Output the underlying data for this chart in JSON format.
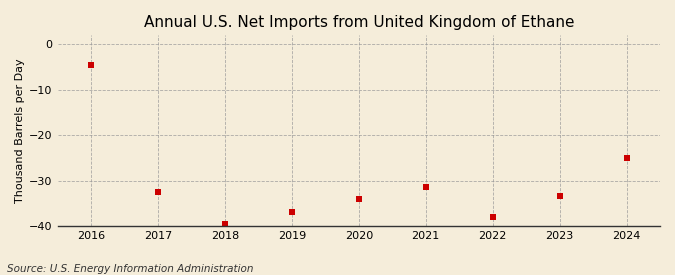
{
  "title": "Annual U.S. Net Imports from United Kingdom of Ethane",
  "ylabel": "Thousand Barrels per Day",
  "source": "Source: U.S. Energy Information Administration",
  "background_color": "#f5edda",
  "plot_bg_color": "#f5edda",
  "years": [
    2016,
    2017,
    2018,
    2019,
    2020,
    2021,
    2022,
    2023,
    2024
  ],
  "values": [
    -4.5,
    -32.5,
    -39.5,
    -37.0,
    -34.0,
    -31.5,
    -38.0,
    -33.5,
    -25.0
  ],
  "marker_color": "#cc0000",
  "marker_size": 4,
  "ylim": [
    -40,
    2
  ],
  "yticks": [
    0,
    -10,
    -20,
    -30,
    -40
  ],
  "grid_color": "#999999",
  "vline_color": "#999999",
  "title_fontsize": 11,
  "label_fontsize": 8,
  "tick_fontsize": 8,
  "source_fontsize": 7.5
}
